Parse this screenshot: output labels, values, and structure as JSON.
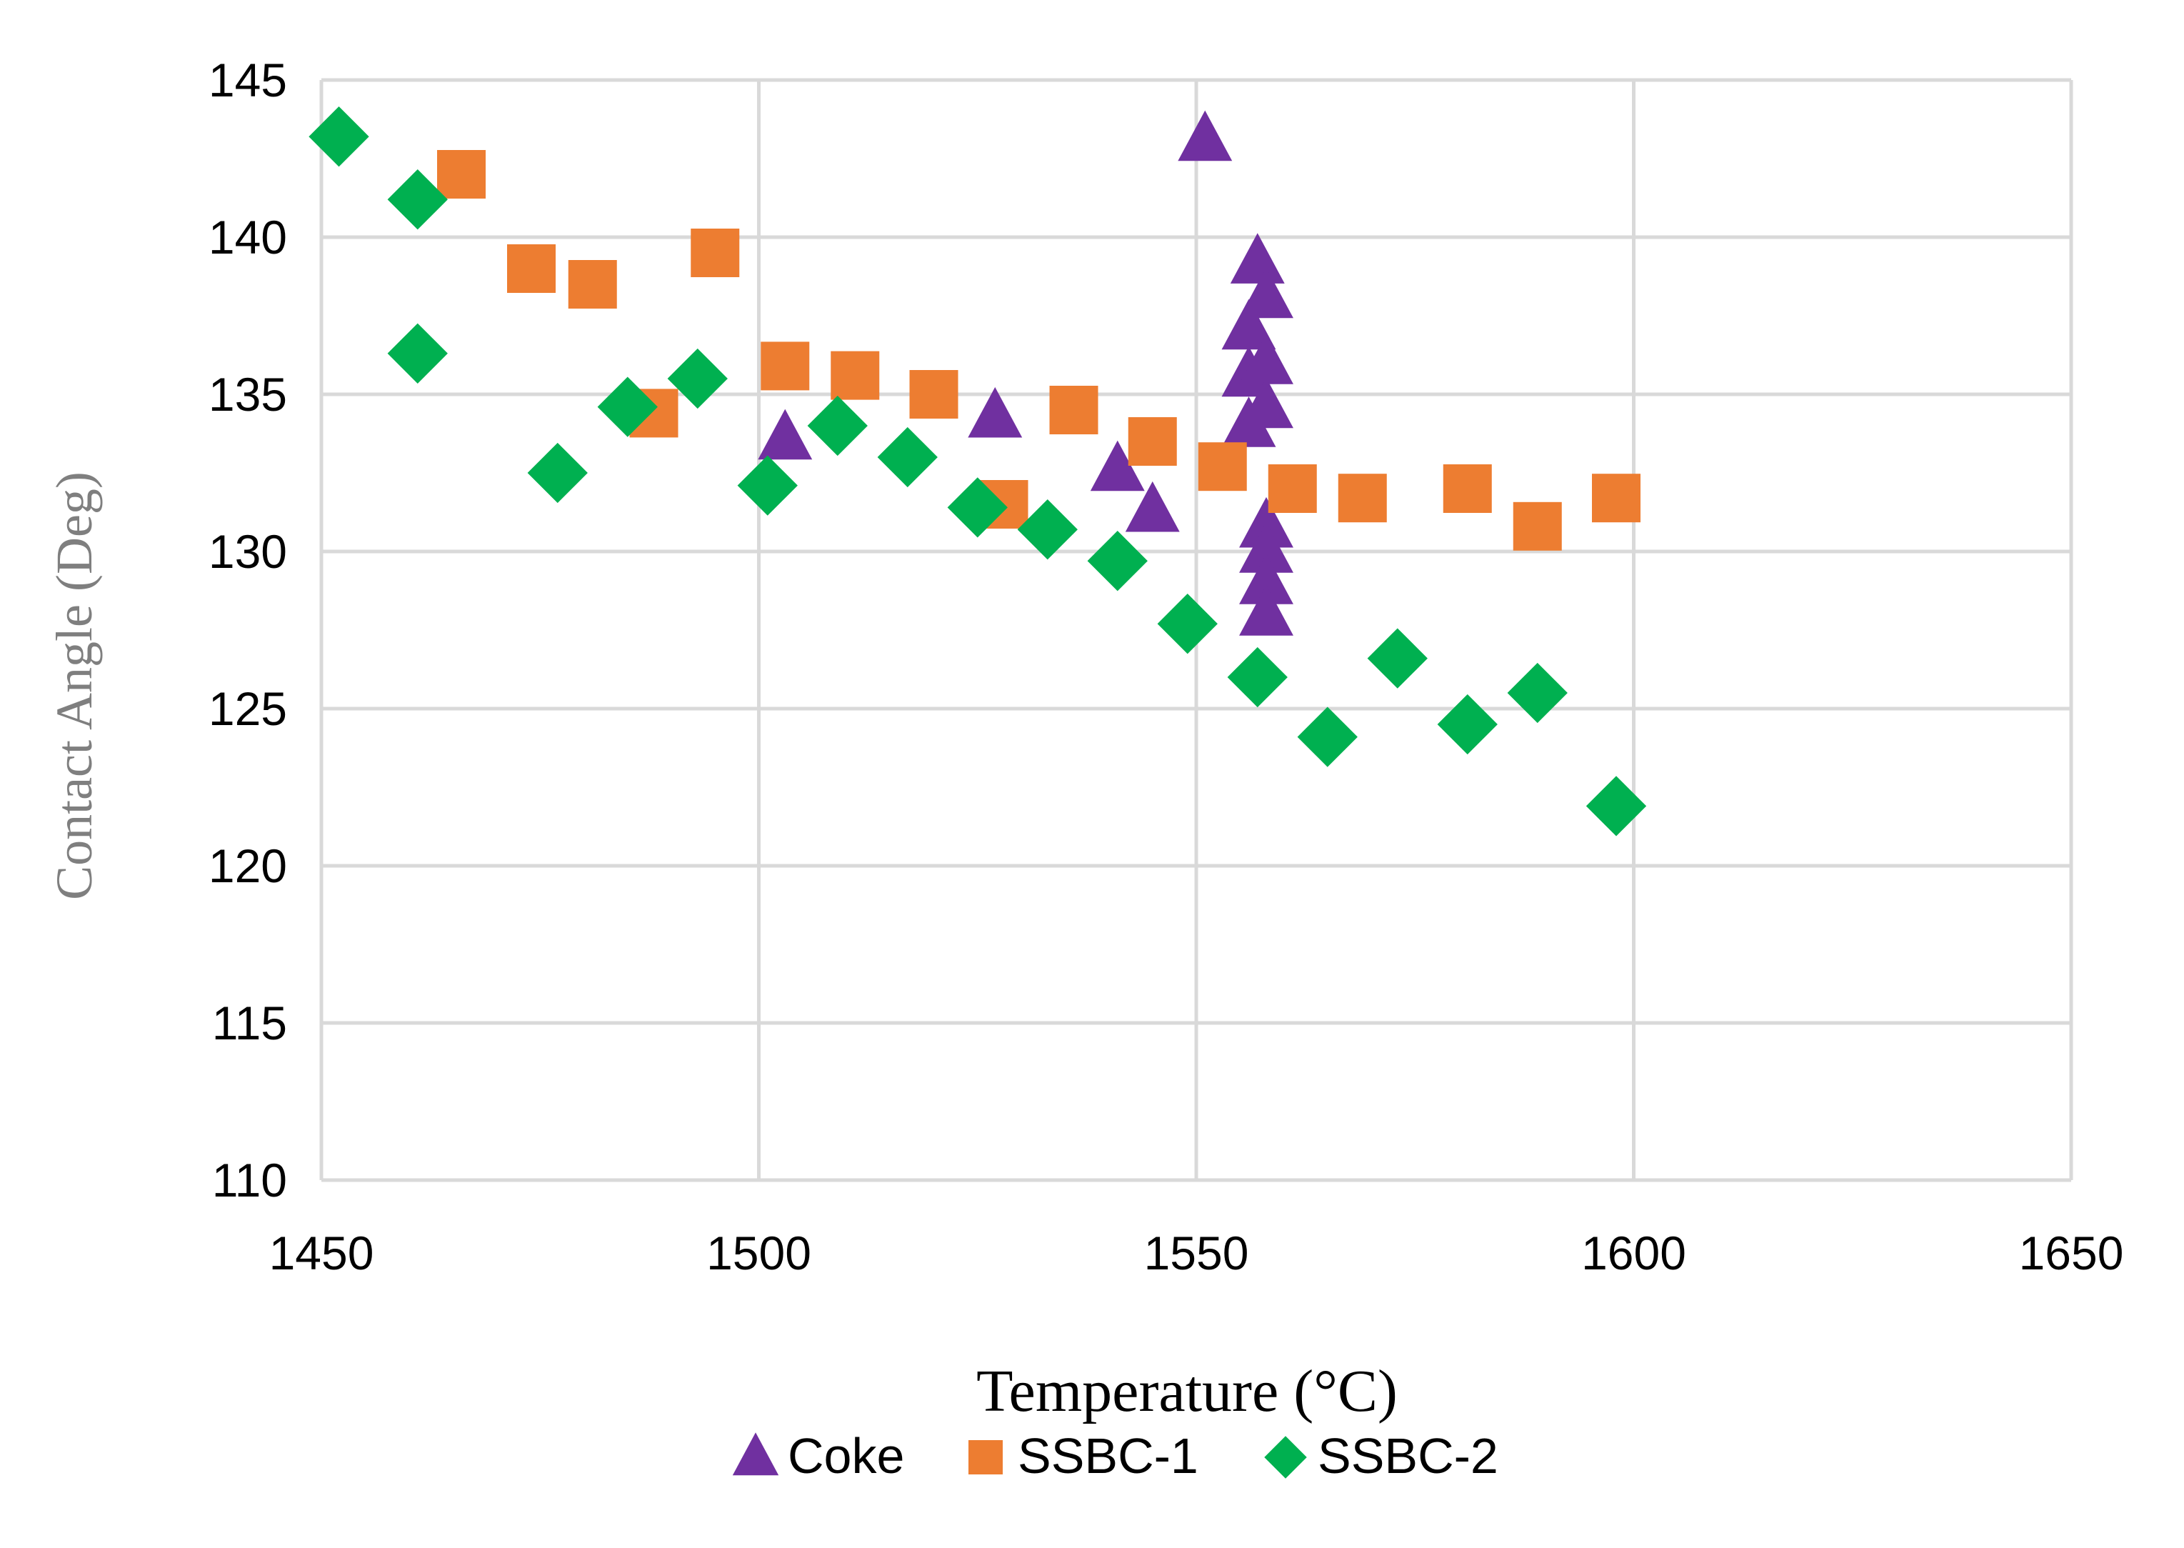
{
  "chart_data": {
    "type": "scatter",
    "title": "",
    "xlabel": "Temperature (°C)",
    "ylabel": "Contact Angle (Deg)",
    "xlim": [
      1450,
      1650
    ],
    "ylim": [
      110,
      145
    ],
    "xticks": [
      1450,
      1500,
      1550,
      1600,
      1650
    ],
    "yticks": [
      110,
      115,
      120,
      125,
      130,
      135,
      140,
      145
    ],
    "grid": true,
    "legend_position": "bottom",
    "series": [
      {
        "name": "Coke",
        "marker": "triangle",
        "color": "#7030a0",
        "points": [
          [
            1503,
            133.6
          ],
          [
            1527,
            134.3
          ],
          [
            1541,
            132.6
          ],
          [
            1545,
            131.3
          ],
          [
            1551,
            143.1
          ],
          [
            1556,
            134.0
          ],
          [
            1556,
            137.1
          ],
          [
            1556,
            135.6
          ],
          [
            1557,
            139.2
          ],
          [
            1558,
            138.1
          ],
          [
            1558,
            136.0
          ],
          [
            1558,
            134.6
          ],
          [
            1558,
            130.8
          ],
          [
            1558,
            130.0
          ],
          [
            1558,
            129.0
          ],
          [
            1558,
            128.0
          ]
        ]
      },
      {
        "name": "SSBC-1",
        "marker": "square",
        "color": "#ed7d31",
        "points": [
          [
            1466,
            142.0
          ],
          [
            1474,
            139.0
          ],
          [
            1481,
            138.5
          ],
          [
            1488,
            134.4
          ],
          [
            1495,
            139.5
          ],
          [
            1503,
            135.9
          ],
          [
            1511,
            135.6
          ],
          [
            1520,
            135.0
          ],
          [
            1528,
            131.5
          ],
          [
            1536,
            134.5
          ],
          [
            1545,
            133.5
          ],
          [
            1553,
            132.7
          ],
          [
            1561,
            132.0
          ],
          [
            1569,
            131.7
          ],
          [
            1581,
            132.0
          ],
          [
            1589,
            130.8
          ],
          [
            1598,
            131.7
          ]
        ]
      },
      {
        "name": "SSBC-2",
        "marker": "diamond",
        "color": "#00b050",
        "points": [
          [
            1452,
            143.2
          ],
          [
            1461,
            141.2
          ],
          [
            1461,
            136.3
          ],
          [
            1477,
            132.5
          ],
          [
            1485,
            134.6
          ],
          [
            1493,
            135.5
          ],
          [
            1501,
            132.1
          ],
          [
            1509,
            134.0
          ],
          [
            1517,
            133.0
          ],
          [
            1525,
            131.4
          ],
          [
            1533,
            130.7
          ],
          [
            1541,
            129.7
          ],
          [
            1549,
            127.7
          ],
          [
            1557,
            126.0
          ],
          [
            1565,
            124.1
          ],
          [
            1573,
            126.6
          ],
          [
            1581,
            124.5
          ],
          [
            1589,
            125.5
          ],
          [
            1598,
            121.9
          ]
        ]
      }
    ]
  }
}
